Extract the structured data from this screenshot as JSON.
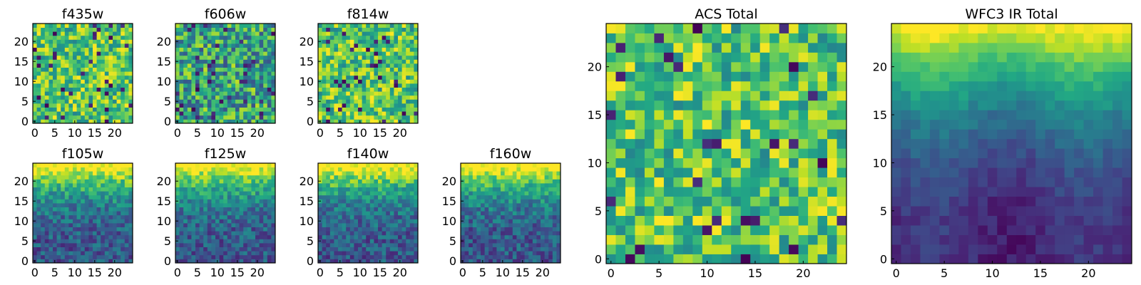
{
  "chart_data": [
    {
      "id": "f435w",
      "type": "heatmap",
      "title": "f435w",
      "grid_size": 25,
      "xlim": [
        0,
        25
      ],
      "ylim": [
        0,
        25
      ],
      "xticks": [
        0,
        5,
        10,
        15,
        20
      ],
      "yticks": [
        0,
        5,
        10,
        15,
        20
      ],
      "colormap": "viridis",
      "pattern": "noise-high",
      "seed": 11
    },
    {
      "id": "f606w",
      "type": "heatmap",
      "title": "f606w",
      "grid_size": 25,
      "xlim": [
        0,
        25
      ],
      "ylim": [
        0,
        25
      ],
      "xticks": [
        0,
        5,
        10,
        15,
        20
      ],
      "yticks": [
        0,
        5,
        10,
        15,
        20
      ],
      "colormap": "viridis",
      "pattern": "noise-mid",
      "seed": 23
    },
    {
      "id": "f814w",
      "type": "heatmap",
      "title": "f814w",
      "grid_size": 25,
      "xlim": [
        0,
        25
      ],
      "ylim": [
        0,
        25
      ],
      "xticks": [
        0,
        5,
        10,
        15,
        20
      ],
      "yticks": [
        0,
        5,
        10,
        15,
        20
      ],
      "colormap": "viridis",
      "pattern": "noise-high",
      "seed": 37
    },
    {
      "id": "f105w",
      "type": "heatmap",
      "title": "f105w",
      "grid_size": 25,
      "xlim": [
        0,
        25
      ],
      "ylim": [
        0,
        25
      ],
      "xticks": [
        0,
        5,
        10,
        15,
        20
      ],
      "yticks": [
        0,
        5,
        10,
        15,
        20
      ],
      "colormap": "viridis",
      "pattern": "gradient-top",
      "seed": 41
    },
    {
      "id": "f125w",
      "type": "heatmap",
      "title": "f125w",
      "grid_size": 25,
      "xlim": [
        0,
        25
      ],
      "ylim": [
        0,
        25
      ],
      "xticks": [
        0,
        5,
        10,
        15,
        20
      ],
      "yticks": [
        0,
        5,
        10,
        15,
        20
      ],
      "colormap": "viridis",
      "pattern": "gradient-top",
      "seed": 53
    },
    {
      "id": "f140w",
      "type": "heatmap",
      "title": "f140w",
      "grid_size": 25,
      "xlim": [
        0,
        25
      ],
      "ylim": [
        0,
        25
      ],
      "xticks": [
        0,
        5,
        10,
        15,
        20
      ],
      "yticks": [
        0,
        5,
        10,
        15,
        20
      ],
      "colormap": "viridis",
      "pattern": "gradient-top",
      "seed": 67
    },
    {
      "id": "f160w",
      "type": "heatmap",
      "title": "f160w",
      "grid_size": 25,
      "xlim": [
        0,
        25
      ],
      "ylim": [
        0,
        25
      ],
      "xticks": [
        0,
        5,
        10,
        15,
        20
      ],
      "yticks": [
        0,
        5,
        10,
        15,
        20
      ],
      "colormap": "viridis",
      "pattern": "gradient-top",
      "seed": 79
    },
    {
      "id": "acs_total",
      "type": "heatmap",
      "title": "ACS Total",
      "grid_size": 25,
      "xlim": [
        0,
        25
      ],
      "ylim": [
        0,
        25
      ],
      "xticks": [
        0,
        5,
        10,
        15,
        20
      ],
      "yticks": [
        0,
        5,
        10,
        15,
        20
      ],
      "colormap": "viridis",
      "pattern": "noise-high",
      "seed": 97
    },
    {
      "id": "wfc3_ir_total",
      "type": "heatmap",
      "title": "WFC3 IR Total",
      "grid_size": 25,
      "xlim": [
        0,
        25
      ],
      "ylim": [
        0,
        25
      ],
      "xticks": [
        0,
        5,
        10,
        15,
        20
      ],
      "yticks": [
        0,
        5,
        10,
        15,
        20
      ],
      "colormap": "viridis",
      "pattern": "smooth-gradient-top",
      "seed": 113
    }
  ]
}
